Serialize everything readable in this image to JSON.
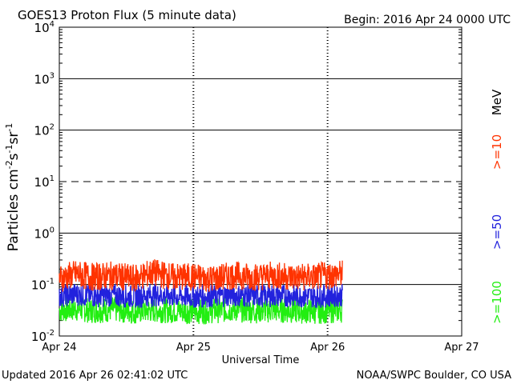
{
  "chart_data": {
    "type": "line",
    "title": "GOES13 Proton Flux (5 minute data)",
    "begin_label": "Begin: 2016 Apr 24 0000 UTC",
    "xlabel": "Universal Time",
    "ylabel": {
      "base": "Particles cm",
      "exp1": "-2",
      "mid1": "s",
      "exp2": "-1",
      "mid2": "sr",
      "exp3": "-1"
    },
    "yscale": "log",
    "ylim": [
      0.01,
      10000
    ],
    "y_ticks": [
      {
        "value": 10000,
        "base": "10",
        "exp": "4"
      },
      {
        "value": 1000,
        "base": "10",
        "exp": "3"
      },
      {
        "value": 100,
        "base": "10",
        "exp": "2"
      },
      {
        "value": 10,
        "base": "10",
        "exp": "1"
      },
      {
        "value": 1,
        "base": "10",
        "exp": "0"
      },
      {
        "value": 0.1,
        "base": "10",
        "exp": "-1"
      },
      {
        "value": 0.01,
        "base": "10",
        "exp": "-2"
      }
    ],
    "x_range_days": [
      0,
      3
    ],
    "x_ticks": [
      {
        "day": 0,
        "label": "Apr 24"
      },
      {
        "day": 1,
        "label": "Apr 25"
      },
      {
        "day": 2,
        "label": "Apr 26"
      },
      {
        "day": 3,
        "label": "Apr 27"
      }
    ],
    "data_end_day": 2.11,
    "threshold_line": 10,
    "unit_label": "MeV",
    "series": [
      {
        "name": ">=10",
        "color": "#ff3300",
        "points": [
          [
            0,
            0.13
          ],
          [
            0.12,
            0.16
          ],
          [
            0.25,
            0.14
          ],
          [
            0.4,
            0.15
          ],
          [
            0.55,
            0.13
          ],
          [
            0.7,
            0.17
          ],
          [
            0.85,
            0.14
          ],
          [
            1.0,
            0.14
          ],
          [
            1.15,
            0.13
          ],
          [
            1.3,
            0.15
          ],
          [
            1.45,
            0.14
          ],
          [
            1.6,
            0.15
          ],
          [
            1.75,
            0.14
          ],
          [
            1.9,
            0.14
          ],
          [
            2.0,
            0.15
          ],
          [
            2.11,
            0.16
          ]
        ]
      },
      {
        "name": ">=50",
        "color": "#2222dd",
        "points": [
          [
            0,
            0.06
          ],
          [
            0.12,
            0.065
          ],
          [
            0.25,
            0.06
          ],
          [
            0.4,
            0.062
          ],
          [
            0.55,
            0.058
          ],
          [
            0.7,
            0.063
          ],
          [
            0.85,
            0.06
          ],
          [
            1.0,
            0.058
          ],
          [
            1.15,
            0.06
          ],
          [
            1.3,
            0.062
          ],
          [
            1.45,
            0.06
          ],
          [
            1.6,
            0.061
          ],
          [
            1.75,
            0.06
          ],
          [
            1.9,
            0.059
          ],
          [
            2.0,
            0.06
          ],
          [
            2.11,
            0.062
          ]
        ]
      },
      {
        "name": ">=100",
        "color": "#22ee11",
        "points": [
          [
            0,
            0.032
          ],
          [
            0.12,
            0.034
          ],
          [
            0.25,
            0.031
          ],
          [
            0.4,
            0.033
          ],
          [
            0.55,
            0.03
          ],
          [
            0.7,
            0.032
          ],
          [
            0.85,
            0.031
          ],
          [
            1.0,
            0.03
          ],
          [
            1.15,
            0.031
          ],
          [
            1.3,
            0.033
          ],
          [
            1.45,
            0.031
          ],
          [
            1.6,
            0.032
          ],
          [
            1.75,
            0.031
          ],
          [
            1.9,
            0.03
          ],
          [
            2.0,
            0.031
          ],
          [
            2.11,
            0.032
          ]
        ]
      }
    ]
  },
  "footer": {
    "updated": "Updated 2016 Apr 26 02:41:02 UTC",
    "credit": "NOAA/SWPC Boulder, CO USA"
  }
}
